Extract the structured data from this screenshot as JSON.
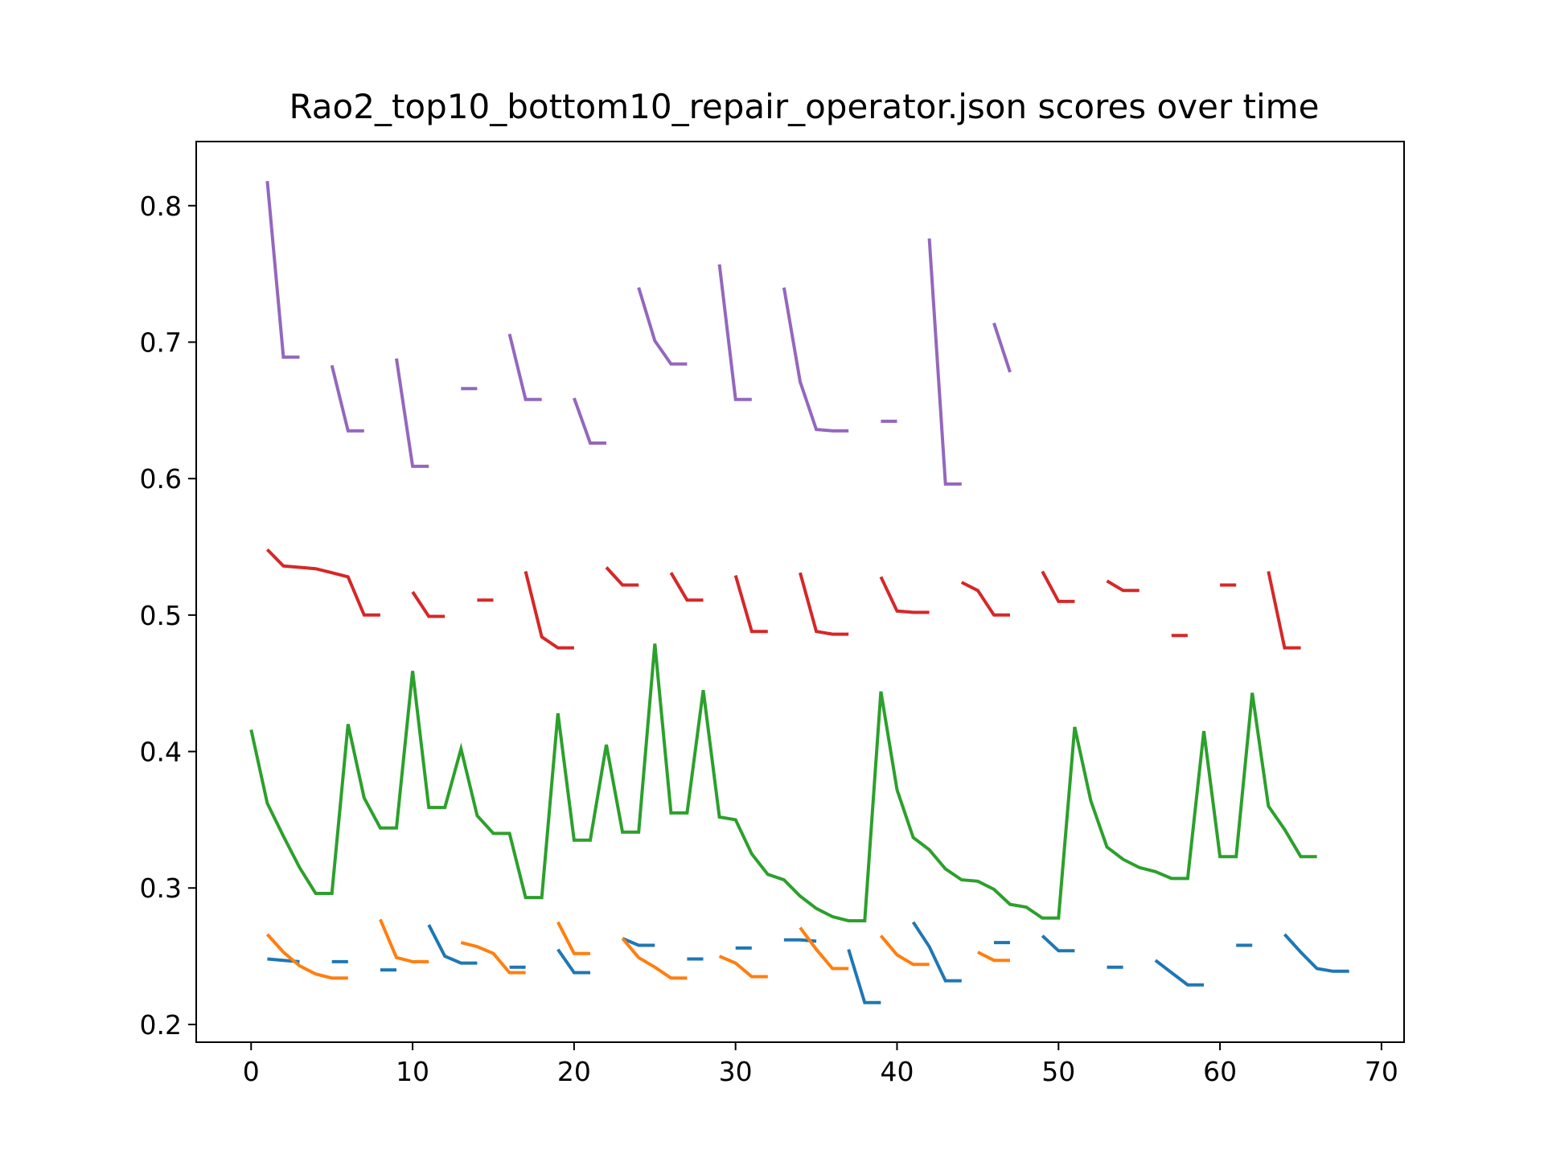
{
  "chart_data": {
    "type": "line",
    "title": "Rao2_top10_bottom10_repair_operator.json scores over time",
    "xlabel": "",
    "ylabel": "",
    "xlim": [
      -3.4,
      71.4
    ],
    "ylim": [
      0.187,
      0.847
    ],
    "xticks": [
      0,
      10,
      20,
      30,
      40,
      50,
      60,
      70
    ],
    "yticks": [
      0.2,
      0.3,
      0.4,
      0.5,
      0.6,
      0.7,
      0.8
    ],
    "xtick_labels": [
      "0",
      "10",
      "20",
      "30",
      "40",
      "50",
      "60",
      "70"
    ],
    "ytick_labels": [
      "0.2",
      "0.3",
      "0.4",
      "0.5",
      "0.6",
      "0.7",
      "0.8"
    ],
    "grid": false,
    "legend": "none",
    "series": [
      {
        "color": "#1f77b4",
        "segments": [
          [
            [
              1,
              0.248
            ],
            [
              2,
              0.247
            ],
            [
              3,
              0.246
            ]
          ],
          [
            [
              5,
              0.246
            ],
            [
              6,
              0.246
            ]
          ],
          [
            [
              8,
              0.24
            ],
            [
              9,
              0.24
            ]
          ],
          [
            [
              11,
              0.273
            ],
            [
              12,
              0.25
            ],
            [
              13,
              0.245
            ],
            [
              14,
              0.245
            ]
          ],
          [
            [
              16,
              0.242
            ],
            [
              17,
              0.242
            ]
          ],
          [
            [
              19,
              0.255
            ],
            [
              20,
              0.238
            ],
            [
              21,
              0.238
            ]
          ],
          [
            [
              23,
              0.263
            ],
            [
              24,
              0.258
            ],
            [
              25,
              0.258
            ]
          ],
          [
            [
              27,
              0.248
            ],
            [
              28,
              0.248
            ]
          ],
          [
            [
              30,
              0.256
            ],
            [
              31,
              0.256
            ]
          ],
          [
            [
              33,
              0.262
            ],
            [
              34,
              0.262
            ],
            [
              35,
              0.261
            ]
          ],
          [
            [
              37,
              0.255
            ],
            [
              38,
              0.216
            ],
            [
              39,
              0.216
            ]
          ],
          [
            [
              41,
              0.275
            ],
            [
              42,
              0.257
            ],
            [
              43,
              0.232
            ],
            [
              44,
              0.232
            ]
          ],
          [
            [
              46,
              0.26
            ],
            [
              47,
              0.26
            ]
          ],
          [
            [
              49,
              0.265
            ],
            [
              50,
              0.254
            ],
            [
              51,
              0.254
            ]
          ],
          [
            [
              53,
              0.242
            ],
            [
              54,
              0.242
            ]
          ],
          [
            [
              56,
              0.247
            ],
            [
              57,
              0.238
            ],
            [
              58,
              0.229
            ],
            [
              59,
              0.229
            ]
          ],
          [
            [
              61,
              0.258
            ],
            [
              62,
              0.258
            ]
          ],
          [
            [
              64,
              0.266
            ],
            [
              65,
              0.253
            ],
            [
              66,
              0.241
            ],
            [
              67,
              0.239
            ],
            [
              68,
              0.239
            ]
          ]
        ]
      },
      {
        "color": "#ff7f0e",
        "segments": [
          [
            [
              1,
              0.266
            ],
            [
              2,
              0.253
            ],
            [
              3,
              0.243
            ],
            [
              4,
              0.237
            ],
            [
              5,
              0.234
            ],
            [
              6,
              0.234
            ]
          ],
          [
            [
              8,
              0.277
            ],
            [
              9,
              0.249
            ],
            [
              10,
              0.246
            ],
            [
              11,
              0.246
            ]
          ],
          [
            [
              13,
              0.26
            ],
            [
              14,
              0.257
            ],
            [
              15,
              0.252
            ],
            [
              16,
              0.238
            ],
            [
              17,
              0.238
            ]
          ],
          [
            [
              19,
              0.275
            ],
            [
              20,
              0.252
            ],
            [
              21,
              0.252
            ]
          ],
          [
            [
              23,
              0.263
            ],
            [
              24,
              0.249
            ],
            [
              25,
              0.242
            ],
            [
              26,
              0.234
            ],
            [
              27,
              0.234
            ]
          ],
          [
            [
              29,
              0.25
            ],
            [
              30,
              0.245
            ],
            [
              31,
              0.235
            ],
            [
              32,
              0.235
            ]
          ],
          [
            [
              34,
              0.271
            ],
            [
              35,
              0.255
            ],
            [
              36,
              0.241
            ],
            [
              37,
              0.241
            ]
          ],
          [
            [
              39,
              0.265
            ],
            [
              40,
              0.251
            ],
            [
              41,
              0.244
            ],
            [
              42,
              0.244
            ]
          ],
          [
            [
              45,
              0.253
            ],
            [
              46,
              0.247
            ],
            [
              47,
              0.247
            ]
          ]
        ]
      },
      {
        "color": "#2ca02c",
        "segments": [
          [
            [
              0,
              0.416
            ],
            [
              1,
              0.362
            ],
            [
              2,
              0.338
            ],
            [
              3,
              0.315
            ],
            [
              4,
              0.296
            ],
            [
              5,
              0.296
            ],
            [
              6,
              0.42
            ],
            [
              7,
              0.366
            ],
            [
              8,
              0.344
            ],
            [
              9,
              0.344
            ],
            [
              10,
              0.459
            ],
            [
              11,
              0.359
            ],
            [
              12,
              0.359
            ],
            [
              13,
              0.402
            ],
            [
              14,
              0.353
            ],
            [
              15,
              0.34
            ],
            [
              16,
              0.34
            ],
            [
              17,
              0.293
            ],
            [
              18,
              0.293
            ],
            [
              19,
              0.428
            ],
            [
              20,
              0.335
            ],
            [
              21,
              0.335
            ],
            [
              22,
              0.405
            ],
            [
              23,
              0.341
            ],
            [
              24,
              0.341
            ],
            [
              25,
              0.479
            ],
            [
              26,
              0.355
            ],
            [
              27,
              0.355
            ],
            [
              28,
              0.445
            ],
            [
              29,
              0.352
            ],
            [
              30,
              0.35
            ],
            [
              31,
              0.325
            ],
            [
              32,
              0.31
            ],
            [
              33,
              0.306
            ],
            [
              34,
              0.294
            ],
            [
              35,
              0.285
            ],
            [
              36,
              0.279
            ],
            [
              37,
              0.276
            ],
            [
              38,
              0.276
            ],
            [
              39,
              0.444
            ],
            [
              40,
              0.372
            ],
            [
              41,
              0.337
            ],
            [
              42,
              0.328
            ],
            [
              43,
              0.314
            ],
            [
              44,
              0.306
            ],
            [
              45,
              0.305
            ],
            [
              46,
              0.299
            ],
            [
              47,
              0.288
            ],
            [
              48,
              0.286
            ],
            [
              49,
              0.278
            ],
            [
              50,
              0.278
            ],
            [
              51,
              0.418
            ],
            [
              52,
              0.364
            ],
            [
              53,
              0.33
            ],
            [
              54,
              0.321
            ],
            [
              55,
              0.315
            ],
            [
              56,
              0.312
            ],
            [
              57,
              0.307
            ],
            [
              58,
              0.307
            ],
            [
              59,
              0.415
            ],
            [
              60,
              0.323
            ],
            [
              61,
              0.323
            ],
            [
              62,
              0.443
            ],
            [
              63,
              0.36
            ],
            [
              64,
              0.343
            ],
            [
              65,
              0.323
            ],
            [
              66,
              0.323
            ]
          ]
        ]
      },
      {
        "color": "#d62728",
        "segments": [
          [
            [
              1,
              0.548
            ],
            [
              2,
              0.536
            ],
            [
              3,
              0.535
            ],
            [
              4,
              0.534
            ],
            [
              5,
              0.531
            ],
            [
              6,
              0.528
            ],
            [
              7,
              0.5
            ],
            [
              8,
              0.5
            ]
          ],
          [
            [
              10,
              0.517
            ],
            [
              11,
              0.499
            ],
            [
              12,
              0.499
            ]
          ],
          [
            [
              14,
              0.511
            ],
            [
              15,
              0.511
            ]
          ],
          [
            [
              17,
              0.532
            ],
            [
              18,
              0.484
            ],
            [
              19,
              0.476
            ],
            [
              20,
              0.476
            ]
          ],
          [
            [
              22,
              0.535
            ],
            [
              23,
              0.522
            ],
            [
              24,
              0.522
            ]
          ],
          [
            [
              26,
              0.531
            ],
            [
              27,
              0.511
            ],
            [
              28,
              0.511
            ]
          ],
          [
            [
              30,
              0.529
            ],
            [
              31,
              0.488
            ],
            [
              32,
              0.488
            ]
          ],
          [
            [
              34,
              0.531
            ],
            [
              35,
              0.488
            ],
            [
              36,
              0.486
            ],
            [
              37,
              0.486
            ]
          ],
          [
            [
              39,
              0.528
            ],
            [
              40,
              0.503
            ],
            [
              41,
              0.502
            ],
            [
              42,
              0.502
            ]
          ],
          [
            [
              44,
              0.524
            ],
            [
              45,
              0.518
            ],
            [
              46,
              0.5
            ],
            [
              47,
              0.5
            ]
          ],
          [
            [
              49,
              0.532
            ],
            [
              50,
              0.51
            ],
            [
              51,
              0.51
            ]
          ],
          [
            [
              53,
              0.525
            ],
            [
              54,
              0.518
            ],
            [
              55,
              0.518
            ]
          ],
          [
            [
              57,
              0.485
            ],
            [
              58,
              0.485
            ]
          ],
          [
            [
              60,
              0.522
            ],
            [
              61,
              0.522
            ]
          ],
          [
            [
              63,
              0.532
            ],
            [
              64,
              0.476
            ],
            [
              65,
              0.476
            ]
          ]
        ]
      },
      {
        "color": "#9467bd",
        "segments": [
          [
            [
              1,
              0.818
            ],
            [
              2,
              0.689
            ],
            [
              3,
              0.689
            ]
          ],
          [
            [
              5,
              0.683
            ],
            [
              6,
              0.635
            ],
            [
              7,
              0.635
            ]
          ],
          [
            [
              9,
              0.688
            ],
            [
              10,
              0.609
            ],
            [
              11,
              0.609
            ]
          ],
          [
            [
              13,
              0.666
            ],
            [
              14,
              0.666
            ]
          ],
          [
            [
              16,
              0.706
            ],
            [
              17,
              0.658
            ],
            [
              18,
              0.658
            ]
          ],
          [
            [
              20,
              0.659
            ],
            [
              21,
              0.626
            ],
            [
              22,
              0.626
            ]
          ],
          [
            [
              24,
              0.74
            ],
            [
              25,
              0.701
            ],
            [
              26,
              0.684
            ],
            [
              27,
              0.684
            ]
          ],
          [
            [
              29,
              0.757
            ],
            [
              30,
              0.658
            ],
            [
              31,
              0.658
            ]
          ],
          [
            [
              33,
              0.74
            ],
            [
              34,
              0.671
            ],
            [
              35,
              0.636
            ],
            [
              36,
              0.635
            ],
            [
              37,
              0.635
            ]
          ],
          [
            [
              39,
              0.642
            ],
            [
              40,
              0.642
            ]
          ],
          [
            [
              42,
              0.776
            ],
            [
              43,
              0.596
            ],
            [
              44,
              0.596
            ]
          ],
          [
            [
              46,
              0.714
            ],
            [
              47,
              0.678
            ]
          ]
        ]
      }
    ]
  }
}
